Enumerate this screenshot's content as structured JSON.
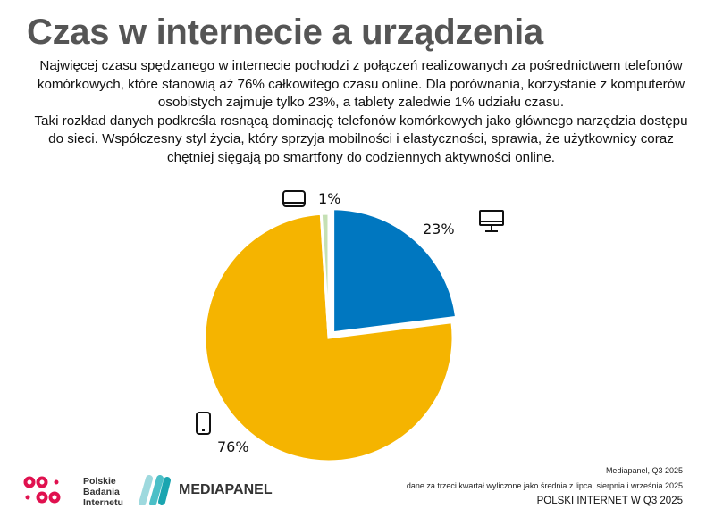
{
  "header": {
    "title": "Czas w internecie a urządzenia",
    "paragraph1": "Najwięcej czasu spędzanego w internecie pochodzi z połączeń realizowanych za pośrednictwem telefonów komórkowych, które stanowią aż 76% całkowitego czasu online. Dla porównania, korzystanie z komputerów osobistych zajmuje tylko 23%, a tablety zaledwie 1% udziału czasu.",
    "paragraph2": "Taki rozkład danych podkreśla rosnącą dominację telefonów komórkowych jako głównego narzędzia dostępu do sieci. Współczesny styl życia, który sprzyja mobilności i elastyczności, sprawia, że użytkownicy coraz chętniej sięgają po smartfony do codziennych aktywności online."
  },
  "chart_data": {
    "type": "pie",
    "start": "top",
    "direction": "clockwise",
    "slices": [
      {
        "label": "23%",
        "value": 23,
        "icon": "desktop-monitor-icon",
        "color": "#0077C0",
        "exploded": true
      },
      {
        "label": "76%",
        "value": 76,
        "icon": "smartphone-icon",
        "color": "#F5B400"
      },
      {
        "label": "1%",
        "value": 1,
        "icon": "tablet-icon",
        "color": "#C5E0B4"
      }
    ]
  },
  "footer": {
    "source": "Mediapanel, Q3 2025",
    "note": "dane za trzeci kwartał wyliczone jako średnia z lipca, sierpnia i września 2025",
    "report": "POLSKI INTERNET W Q3 2025",
    "logo_pbi": "Polskie Badania Internetu",
    "logo_pbi_lines": [
      "Polskie",
      "Badania",
      "Internetu"
    ],
    "logo_mediapanel": "MEDIAPANEL"
  }
}
